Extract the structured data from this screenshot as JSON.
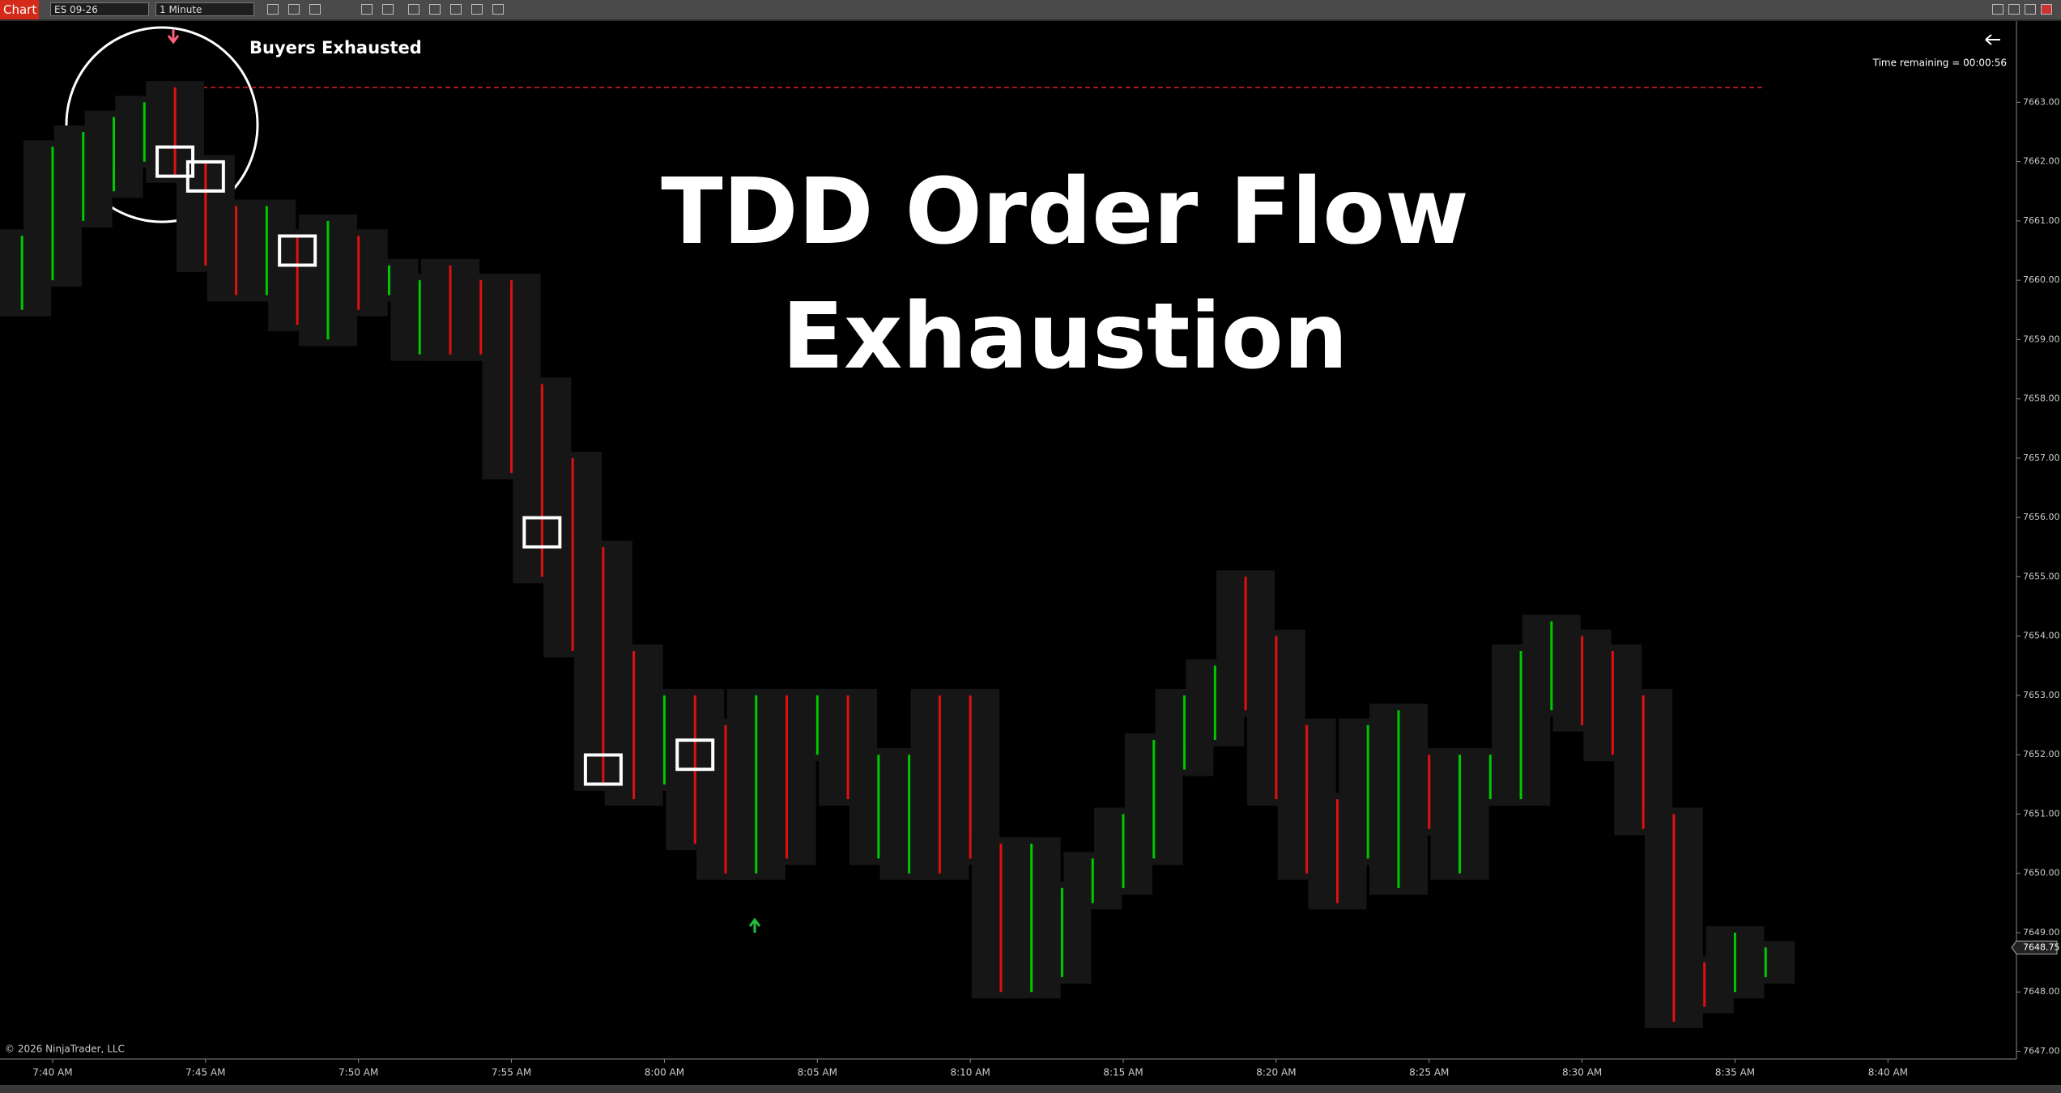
{
  "toolbar": {
    "label": "Chart",
    "instrument": "ES 09-26",
    "interval": "1 Minute"
  },
  "chart_data": {
    "type": "footprint",
    "title_lines": [
      "TDD Order Flow",
      "Exhaustion"
    ],
    "annotation": "Buyers Exhausted",
    "time_remaining": "Time remaining = 00:00:56",
    "copyright": "© 2026 NinjaTrader, LLC",
    "ylim": [
      7646.87,
      7664.37
    ],
    "xlim": [
      -1.72,
      64.2
    ],
    "yticks": [
      {
        "value": 7663,
        "label": "7663.00"
      },
      {
        "value": 7662,
        "label": "7662.00"
      },
      {
        "value": 7661,
        "label": "7661.00"
      },
      {
        "value": 7660,
        "label": "7660.00"
      },
      {
        "value": 7659,
        "label": "7659.00"
      },
      {
        "value": 7658,
        "label": "7658.00"
      },
      {
        "value": 7657,
        "label": "7657.00"
      },
      {
        "value": 7656,
        "label": "7656.00"
      },
      {
        "value": 7655,
        "label": "7655.00"
      },
      {
        "value": 7654,
        "label": "7654.00"
      },
      {
        "value": 7653,
        "label": "7653.00"
      },
      {
        "value": 7652,
        "label": "7652.00"
      },
      {
        "value": 7651,
        "label": "7651.00"
      },
      {
        "value": 7650,
        "label": "7650.00"
      },
      {
        "value": 7649,
        "label": "7649.00"
      },
      {
        "value": 7648,
        "label": "7648.00"
      },
      {
        "value": 7647,
        "label": "7647.00"
      }
    ],
    "xticks": [
      {
        "value": 0,
        "label": "7:40 AM"
      },
      {
        "value": 5,
        "label": "7:45 AM"
      },
      {
        "value": 10,
        "label": "7:50 AM"
      },
      {
        "value": 15,
        "label": "7:55 AM"
      },
      {
        "value": 20,
        "label": "8:00 AM"
      },
      {
        "value": 25,
        "label": "8:05 AM"
      },
      {
        "value": 30,
        "label": "8:10 AM"
      },
      {
        "value": 35,
        "label": "8:15 AM"
      },
      {
        "value": 40,
        "label": "8:20 AM"
      },
      {
        "value": 45,
        "label": "8:25 AM"
      },
      {
        "value": 50,
        "label": "8:30 AM"
      },
      {
        "value": 55,
        "label": "8:35 AM"
      },
      {
        "value": 60,
        "label": "8:40 AM"
      }
    ],
    "current_price": {
      "value": 7648.75,
      "label": "7648.75"
    },
    "dashed_line_price": 7663.25,
    "up_color": "#00c800",
    "down_color": "#e01010",
    "bars": {
      "minute": [
        -1,
        0,
        1,
        2,
        3,
        4,
        5,
        6,
        7,
        8,
        9,
        10,
        11,
        12,
        13,
        14,
        15,
        16,
        17,
        18,
        19,
        20,
        21,
        22,
        23,
        24,
        25,
        26,
        27,
        28,
        29,
        30,
        31,
        32,
        33,
        34,
        35,
        36,
        37,
        38,
        39,
        40,
        41,
        42,
        43,
        44,
        45,
        46,
        47,
        48,
        49,
        50,
        51,
        52,
        53,
        54,
        55,
        56
      ],
      "high": [
        7660.75,
        7662.25,
        7662.5,
        7662.75,
        7663,
        7663.25,
        7662,
        7661.25,
        7661.25,
        7660.75,
        7661,
        7660.75,
        7660.25,
        7660,
        7660.25,
        7660,
        7660,
        7658.25,
        7657,
        7655.5,
        7653.75,
        7653,
        7653,
        7652.5,
        7653,
        7653,
        7653,
        7653,
        7652,
        7652,
        7653,
        7653,
        7650.5,
        7650.5,
        7649.75,
        7650.25,
        7651,
        7652.25,
        7653,
        7653.5,
        7655,
        7654,
        7652.5,
        7651.25,
        7652.5,
        7652.75,
        7652,
        7652,
        7652,
        7653.75,
        7654.25,
        7654,
        7653.75,
        7653,
        7651,
        7648.5,
        7649,
        7648.75
      ],
      "low": [
        7659.5,
        7660,
        7661,
        7661.5,
        7662,
        7661.75,
        7660.25,
        7659.75,
        7659.75,
        7659.25,
        7659,
        7659.5,
        7659.75,
        7658.75,
        7658.75,
        7658.75,
        7656.75,
        7655,
        7653.75,
        7651.5,
        7651.25,
        7651.5,
        7650.5,
        7650,
        7650,
        7650.25,
        7652,
        7651.25,
        7650.25,
        7650,
        7650,
        7650.25,
        7648,
        7648,
        7648.25,
        7649.5,
        7649.75,
        7650.25,
        7651.75,
        7652.25,
        7652.75,
        7651.25,
        7650,
        7649.5,
        7650.25,
        7649.75,
        7650.75,
        7650,
        7651.25,
        7651.25,
        7652.75,
        7652.5,
        7652,
        7650.75,
        7647.5,
        7647.75,
        7648,
        7648.25
      ],
      "direction": [
        "up",
        "up",
        "up",
        "up",
        "up",
        "down",
        "down",
        "down",
        "up",
        "down",
        "up",
        "down",
        "up",
        "up",
        "down",
        "down",
        "down",
        "down",
        "down",
        "down",
        "down",
        "up",
        "down",
        "down",
        "up",
        "down",
        "up",
        "down",
        "up",
        "up",
        "down",
        "down",
        "down",
        "up",
        "up",
        "up",
        "up",
        "up",
        "up",
        "up",
        "down",
        "down",
        "down",
        "down",
        "up",
        "up",
        "down",
        "up",
        "up",
        "up",
        "up",
        "down",
        "down",
        "down",
        "down",
        "down",
        "up",
        "up"
      ]
    },
    "exhaustion_boxes": {
      "minute": [
        4,
        5,
        8,
        16,
        18,
        21
      ],
      "price": [
        7662,
        7661.75,
        7660.5,
        7655.75,
        7651.75,
        7652
      ]
    }
  }
}
